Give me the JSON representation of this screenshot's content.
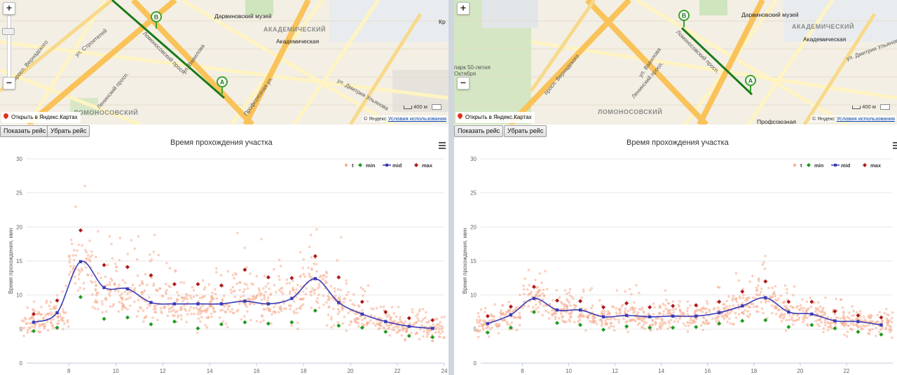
{
  "left": {
    "zoom_in": "+",
    "zoom_out": "−",
    "open_link": "Открыть в Яндекс.Картах",
    "copyright_prefix": "© Яндекс",
    "terms": "Условия использования",
    "scale_label": "400 м",
    "marker_a": "A",
    "marker_b": "B",
    "labels": {
      "prosp_vernadsk": "просп. Вернадского",
      "leninsky": "Ленинский просп.",
      "lomonosovsky": "Ломоносовский просп.",
      "darwin": "Дарвиновский музей",
      "akadem_district": "АКАДЕМИЧЕСКИЙ",
      "akadem_metro": "Академическая",
      "lomonosovsky_district": "ЛОМОНОСОВСКИЙ",
      "profsoyuznaya": "Профсоюзная ул.",
      "dm_ulyanova": "ул. Дмитрия Ульянова",
      "vavilova": "ул. Вавилова",
      "stroiteley": "ул. Строителей",
      "kr": "Кр"
    },
    "show_route": "Показать рейс",
    "hide_route": "Убрать рейс",
    "chart_title": "Время прохождения участка"
  },
  "right": {
    "zoom_in": "+",
    "zoom_out": "−",
    "open_link": "Открыть в Яндекс.Картах",
    "copyright_prefix": "© Яндекс",
    "terms": "Условия использования",
    "scale_label": "400 м",
    "marker_a": "A",
    "marker_b": "B",
    "labels": {
      "prosp_vernadsk": "просп. Вернадского",
      "leninsky": "Ленинский просп.",
      "lomonosovsky": "Ломоносовский просп.",
      "darwin": "Дарвиновский музей",
      "akadem_district": "АКАДЕМИЧЕСКИЙ",
      "akadem_metro": "Академическая",
      "lomonosovsky_district": "ЛОМОНОСОВСКИЙ",
      "park": "парк 50-летия Октября",
      "profsoyuznaya": "Профсоюзная",
      "dm_ulyanova": "ул. Дмитрия Ульянова",
      "vavilova": "ул. Вавилова"
    },
    "show_route": "Показать рейс",
    "hide_route": "Убрать рейс",
    "chart_title": "Время прохождения участка"
  },
  "colors": {
    "t": "#f6a98a",
    "min": "#1e9c1e",
    "mid": "#3a3ab8",
    "max": "#b01818",
    "road_major": "#f9c35a",
    "road_minor": "#fff4c2"
  },
  "chart_data": [
    {
      "type": "scatter",
      "title": "Время прохождения участка",
      "ylabel": "Время прохождения, мин",
      "xlabel": "",
      "xlim": [
        6.2,
        24
      ],
      "ylim": [
        0,
        30
      ],
      "xticks": [
        8,
        10,
        12,
        14,
        16,
        18,
        20,
        22,
        24
      ],
      "yticks": [
        0,
        5,
        10,
        15,
        20,
        25,
        30
      ],
      "legend": [
        "t",
        "min",
        "mid",
        "max"
      ],
      "legend_position": "top-right",
      "grid": true,
      "mid": {
        "x": [
          6.5,
          7.5,
          8.5,
          9.5,
          10.5,
          11.5,
          12.5,
          13.5,
          14.5,
          15.5,
          16.5,
          17.5,
          18.5,
          19.5,
          20.5,
          21.5,
          22.5,
          23.5
        ],
        "y": [
          6.0,
          7.4,
          14.9,
          11.1,
          10.9,
          8.9,
          8.7,
          8.7,
          8.7,
          9.1,
          8.7,
          9.5,
          12.4,
          8.9,
          7.2,
          6.1,
          5.4,
          5.1
        ]
      },
      "min": {
        "x": [
          6.5,
          7.5,
          8.5,
          9.5,
          10.5,
          11.5,
          12.5,
          13.5,
          14.5,
          15.5,
          16.5,
          17.5,
          18.5,
          19.5,
          20.5,
          21.5,
          22.5,
          23.5
        ],
        "y": [
          4.7,
          5.2,
          9.7,
          6.5,
          6.7,
          5.7,
          6.1,
          5.1,
          5.7,
          6.0,
          5.8,
          6.0,
          7.7,
          5.5,
          5.2,
          4.6,
          4.0,
          3.8
        ]
      },
      "max": {
        "x": [
          6.5,
          7.5,
          8.5,
          9.5,
          10.5,
          11.5,
          12.5,
          13.5,
          14.5,
          15.5,
          16.5,
          17.5,
          18.5,
          19.5,
          20.5,
          21.5,
          22.5,
          23.5
        ],
        "y": [
          7.2,
          9.2,
          19.5,
          14.4,
          14.1,
          12.9,
          11.6,
          11.6,
          11.4,
          13.7,
          12.6,
          12.5,
          15.7,
          12.6,
          9.0,
          7.5,
          6.6,
          6.3
        ]
      }
    },
    {
      "type": "scatter",
      "title": "Время прохождения участка",
      "ylabel": "Время прохождения, мин",
      "xlabel": "",
      "xlim": [
        6.2,
        24
      ],
      "ylim": [
        0,
        30
      ],
      "xticks": [
        8,
        10,
        12,
        14,
        16,
        18,
        20,
        22
      ],
      "yticks": [
        0,
        5,
        10,
        15,
        20,
        25,
        30
      ],
      "legend": [
        "t",
        "min",
        "mid",
        "max"
      ],
      "legend_position": "top-right",
      "grid": true,
      "mid": {
        "x": [
          6.5,
          7.5,
          8.5,
          9.5,
          10.5,
          11.5,
          12.5,
          13.5,
          14.5,
          15.5,
          16.5,
          17.5,
          18.5,
          19.5,
          20.5,
          21.5,
          22.5,
          23.5
        ],
        "y": [
          5.8,
          7.1,
          9.5,
          7.8,
          7.8,
          6.8,
          7.0,
          6.8,
          6.9,
          6.9,
          7.4,
          8.4,
          9.6,
          7.5,
          7.2,
          6.2,
          6.1,
          5.6
        ]
      },
      "min": {
        "x": [
          6.5,
          7.5,
          8.5,
          9.5,
          10.5,
          11.5,
          12.5,
          13.5,
          14.5,
          15.5,
          16.5,
          17.5,
          18.5,
          19.5,
          20.5,
          21.5,
          22.5,
          23.5
        ],
        "y": [
          4.5,
          5.2,
          7.5,
          5.9,
          5.6,
          4.9,
          5.4,
          5.2,
          5.2,
          5.3,
          5.8,
          6.2,
          6.3,
          5.3,
          5.6,
          5.1,
          4.6,
          4.2
        ]
      },
      "max": {
        "x": [
          6.5,
          7.5,
          8.5,
          9.5,
          10.5,
          11.5,
          12.5,
          13.5,
          14.5,
          15.5,
          16.5,
          17.5,
          18.5,
          19.5,
          20.5,
          21.5,
          22.5,
          23.5
        ],
        "y": [
          6.9,
          8.3,
          11.2,
          9.2,
          9.1,
          8.2,
          8.8,
          8.2,
          8.4,
          8.5,
          9.0,
          10.5,
          12.0,
          9.0,
          9.0,
          7.6,
          7.0,
          6.7
        ]
      }
    }
  ]
}
